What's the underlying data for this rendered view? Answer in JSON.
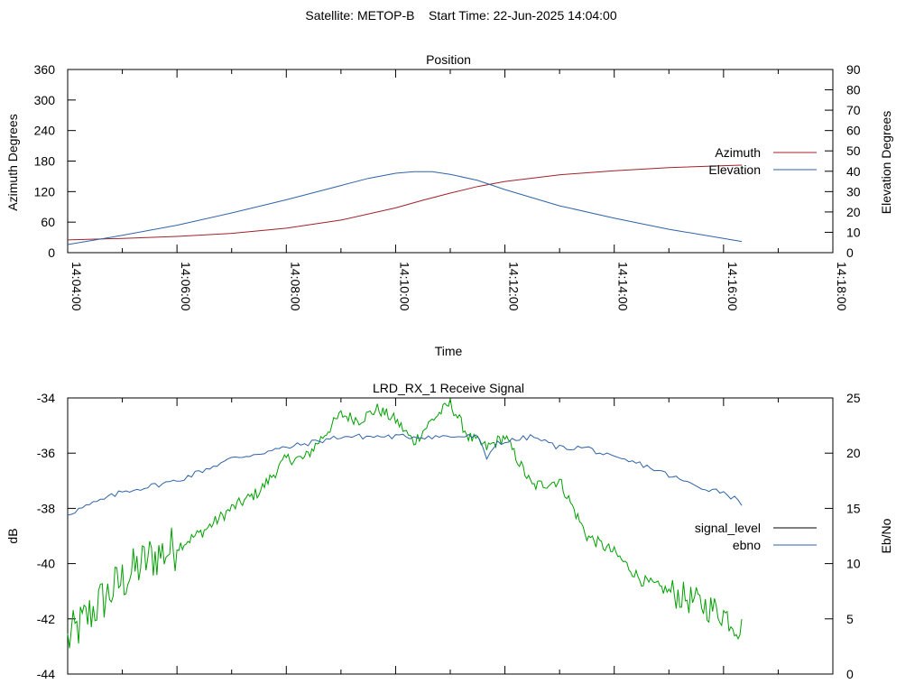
{
  "figure": {
    "title": "Satellite: METOP-B    Start Time: 22-Jun-2025 14:04:00"
  },
  "colors": {
    "azimuth": "#a0222a",
    "elevation": "#2f63a8",
    "signal_level_legend": "#000000",
    "signal_level": "#00a000",
    "ebno": "#2f63a8"
  },
  "chart_data": [
    {
      "type": "line",
      "title": "Position",
      "xlabel": "Time",
      "ylabel": "Azimuth Degrees",
      "y2label": "Elevation Degrees",
      "x_ticks": [
        "14:04:00",
        "14:06:00",
        "14:08:00",
        "14:10:00",
        "14:12:00",
        "14:14:00",
        "14:16:00",
        "14:18:00"
      ],
      "xlim": [
        "14:04:00",
        "14:18:00"
      ],
      "ylim": [
        0,
        360
      ],
      "y_ticks": [
        "0",
        "60",
        "120",
        "180",
        "240",
        "300",
        "360"
      ],
      "y2lim": [
        0,
        90
      ],
      "y2_ticks": [
        "0",
        "10",
        "20",
        "30",
        "40",
        "50",
        "60",
        "70",
        "80",
        "90"
      ],
      "grid": false,
      "legend_position": "right",
      "series": [
        {
          "name": "Azimuth",
          "axis": "y",
          "x": [
            "14:04:00",
            "14:05:00",
            "14:06:00",
            "14:07:00",
            "14:08:00",
            "14:09:00",
            "14:10:00",
            "14:10:30",
            "14:11:00",
            "14:11:30",
            "14:12:00",
            "14:13:00",
            "14:14:00",
            "14:15:00",
            "14:16:00",
            "14:16:20"
          ],
          "values": [
            25,
            28,
            32,
            38,
            48,
            64,
            88,
            103,
            117,
            130,
            140,
            153,
            161,
            167,
            171,
            172
          ]
        },
        {
          "name": "Elevation",
          "axis": "y2",
          "x": [
            "14:04:00",
            "14:05:00",
            "14:06:00",
            "14:07:00",
            "14:08:00",
            "14:09:00",
            "14:09:30",
            "14:10:00",
            "14:10:20",
            "14:10:40",
            "14:11:00",
            "14:11:30",
            "14:12:00",
            "14:13:00",
            "14:14:00",
            "14:15:00",
            "14:16:00",
            "14:16:20"
          ],
          "values": [
            4,
            8.5,
            13.5,
            19.5,
            26,
            33,
            36.5,
            39,
            39.8,
            39.8,
            38.5,
            35.5,
            31,
            23,
            17,
            11.5,
            7,
            5.5
          ]
        }
      ]
    },
    {
      "type": "line",
      "title": "LRD_RX_1 Receive Signal",
      "ylabel": "dB",
      "y2label": "Eb/No",
      "xlim": [
        "14:04:00",
        "14:18:00"
      ],
      "ylim": [
        -44,
        -34
      ],
      "y_ticks": [
        "-44",
        "-42",
        "-40",
        "-38",
        "-36",
        "-34"
      ],
      "y2lim": [
        0,
        25
      ],
      "y2_ticks": [
        "0",
        "5",
        "10",
        "15",
        "20",
        "25"
      ],
      "grid": false,
      "legend_position": "right",
      "series": [
        {
          "name": "signal_level",
          "axis": "y2",
          "x": [
            "14:04:00",
            "14:04:30",
            "14:05:00",
            "14:05:30",
            "14:06:00",
            "14:06:30",
            "14:07:00",
            "14:07:30",
            "14:08:00",
            "14:08:20",
            "14:08:40",
            "14:09:00",
            "14:09:20",
            "14:09:40",
            "14:10:00",
            "14:10:20",
            "14:10:40",
            "14:11:00",
            "14:11:20",
            "14:11:40",
            "14:12:00",
            "14:12:30",
            "14:13:00",
            "14:13:30",
            "14:14:00",
            "14:14:30",
            "14:15:00",
            "14:15:30",
            "14:16:00",
            "14:16:20"
          ],
          "values": [
            3,
            6,
            8.5,
            10.5,
            11.5,
            13,
            15,
            16.5,
            19.5,
            19.5,
            21.5,
            23.5,
            23,
            24,
            23,
            21,
            23,
            24.5,
            21.5,
            20.5,
            21.5,
            17,
            17.5,
            12.5,
            11,
            8.5,
            7.5,
            6.5,
            5.5,
            4
          ]
        },
        {
          "name": "ebno",
          "axis": "y2",
          "x": [
            "14:04:00",
            "14:04:30",
            "14:05:00",
            "14:05:30",
            "14:06:00",
            "14:06:30",
            "14:07:00",
            "14:07:30",
            "14:08:00",
            "14:08:30",
            "14:09:00",
            "14:09:30",
            "14:10:00",
            "14:10:30",
            "14:11:00",
            "14:11:30",
            "14:11:40",
            "14:11:50",
            "14:12:00",
            "14:12:30",
            "14:13:00",
            "14:13:30",
            "14:14:00",
            "14:14:30",
            "14:15:00",
            "14:15:30",
            "14:16:00",
            "14:16:20"
          ],
          "values": [
            14.5,
            15.5,
            16.5,
            17,
            17.5,
            18.5,
            19.5,
            20,
            20.5,
            21,
            21.5,
            21.5,
            21.5,
            21.5,
            21.5,
            21.5,
            19.5,
            21,
            21,
            21.5,
            20.5,
            20.5,
            19.5,
            19,
            18,
            17,
            16.5,
            15.5
          ]
        }
      ]
    }
  ]
}
